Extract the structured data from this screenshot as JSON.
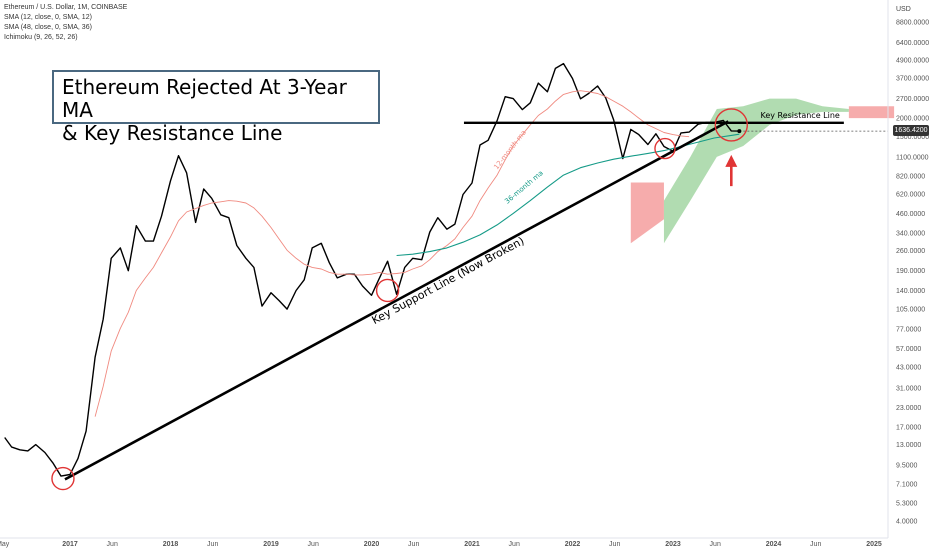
{
  "legend": {
    "symbol": "Ethereum / U.S. Dollar, 1M, COINBASE",
    "sma12": "SMA (12, close, 0, SMA, 12)",
    "sma48": "SMA (48, close, 0, SMA, 36)",
    "ichimoku": "Ichimoku (9, 26, 52, 26)"
  },
  "title": {
    "line1": "Ethereum Rejected At 3-Year MA",
    "line2": "& Key Resistance Line"
  },
  "colors": {
    "price": "#000000",
    "sma12": "#f08a80",
    "sma36": "#169b88",
    "marker": "#e03535",
    "cloud_bull": "#a8d8a8",
    "cloud_bear": "#f5a3a3",
    "annotation_line": "#000000"
  },
  "chart_data": {
    "type": "line",
    "scale": "log",
    "currency": "USD",
    "current_price": "1636.4200",
    "y_ticks": [
      "8800.0000",
      "6400.0000",
      "4900.0000",
      "3700.0000",
      "2700.0000",
      "2000.0000",
      "1500.0000",
      "1100.0000",
      "820.0000",
      "620.0000",
      "460.0000",
      "340.0000",
      "260.0000",
      "190.0000",
      "140.0000",
      "105.0000",
      "77.0000",
      "57.0000",
      "43.0000",
      "31.0000",
      "23.0000",
      "17.0000",
      "13.0000",
      "9.5000",
      "7.1000",
      "5.3000",
      "4.0000"
    ],
    "x_ticks": [
      {
        "label": "May",
        "t": 2016.33
      },
      {
        "label": "2017",
        "t": 2017.0
      },
      {
        "label": "Jun",
        "t": 2017.42
      },
      {
        "label": "2018",
        "t": 2018.0
      },
      {
        "label": "Jun",
        "t": 2018.42
      },
      {
        "label": "2019",
        "t": 2019.0
      },
      {
        "label": "Jun",
        "t": 2019.42
      },
      {
        "label": "2020",
        "t": 2020.0
      },
      {
        "label": "Jun",
        "t": 2020.42
      },
      {
        "label": "2021",
        "t": 2021.0
      },
      {
        "label": "Jun",
        "t": 2021.42
      },
      {
        "label": "2022",
        "t": 2022.0
      },
      {
        "label": "Jun",
        "t": 2022.42
      },
      {
        "label": "2023",
        "t": 2023.0
      },
      {
        "label": "Jun",
        "t": 2023.42
      },
      {
        "label": "2024",
        "t": 2024.0
      },
      {
        "label": "Jun",
        "t": 2024.42
      },
      {
        "label": "2025",
        "t": 2025.0
      }
    ],
    "series": [
      {
        "name": "ETH/USD monthly close",
        "points": [
          [
            2016.35,
            14.5
          ],
          [
            2016.42,
            12.5
          ],
          [
            2016.5,
            12.0
          ],
          [
            2016.58,
            11.8
          ],
          [
            2016.66,
            13.0
          ],
          [
            2016.75,
            11.5
          ],
          [
            2016.83,
            9.8
          ],
          [
            2016.91,
            8.0
          ],
          [
            2017.0,
            8.2
          ],
          [
            2017.08,
            10.5
          ],
          [
            2017.16,
            16
          ],
          [
            2017.25,
            50
          ],
          [
            2017.33,
            90
          ],
          [
            2017.41,
            230
          ],
          [
            2017.5,
            270
          ],
          [
            2017.58,
            190
          ],
          [
            2017.66,
            380
          ],
          [
            2017.75,
            300
          ],
          [
            2017.83,
            300
          ],
          [
            2017.91,
            440
          ],
          [
            2018.0,
            760
          ],
          [
            2018.08,
            1120
          ],
          [
            2018.16,
            860
          ],
          [
            2018.25,
            400
          ],
          [
            2018.33,
            670
          ],
          [
            2018.41,
            580
          ],
          [
            2018.5,
            450
          ],
          [
            2018.58,
            430
          ],
          [
            2018.66,
            280
          ],
          [
            2018.75,
            230
          ],
          [
            2018.83,
            200
          ],
          [
            2018.91,
            110
          ],
          [
            2019.0,
            135
          ],
          [
            2019.08,
            120
          ],
          [
            2019.16,
            105
          ],
          [
            2019.25,
            140
          ],
          [
            2019.33,
            165
          ],
          [
            2019.41,
            270
          ],
          [
            2019.5,
            290
          ],
          [
            2019.58,
            215
          ],
          [
            2019.66,
            170
          ],
          [
            2019.75,
            180
          ],
          [
            2019.83,
            180
          ],
          [
            2019.91,
            150
          ],
          [
            2020.0,
            130
          ],
          [
            2020.08,
            170
          ],
          [
            2020.16,
            220
          ],
          [
            2020.25,
            132
          ],
          [
            2020.33,
            200
          ],
          [
            2020.41,
            230
          ],
          [
            2020.5,
            225
          ],
          [
            2020.58,
            345
          ],
          [
            2020.66,
            430
          ],
          [
            2020.75,
            360
          ],
          [
            2020.83,
            390
          ],
          [
            2020.91,
            615
          ],
          [
            2021.0,
            735
          ],
          [
            2021.08,
            1320
          ],
          [
            2021.16,
            1420
          ],
          [
            2021.25,
            1920
          ],
          [
            2021.33,
            2780
          ],
          [
            2021.41,
            2700
          ],
          [
            2021.5,
            2280
          ],
          [
            2021.58,
            2530
          ],
          [
            2021.66,
            3430
          ],
          [
            2021.75,
            3000
          ],
          [
            2021.83,
            4300
          ],
          [
            2021.91,
            4630
          ],
          [
            2022.0,
            3680
          ],
          [
            2022.08,
            2690
          ],
          [
            2022.16,
            2920
          ],
          [
            2022.25,
            3280
          ],
          [
            2022.33,
            2730
          ],
          [
            2022.41,
            1940
          ],
          [
            2022.5,
            1070
          ],
          [
            2022.58,
            1680
          ],
          [
            2022.66,
            1550
          ],
          [
            2022.75,
            1330
          ],
          [
            2022.83,
            1570
          ],
          [
            2022.91,
            1290
          ],
          [
            2023.0,
            1200
          ],
          [
            2023.08,
            1590
          ],
          [
            2023.16,
            1610
          ],
          [
            2023.25,
            1820
          ],
          [
            2023.33,
            1870
          ],
          [
            2023.41,
            1870
          ],
          [
            2023.5,
            1930
          ],
          [
            2023.58,
            1640
          ],
          [
            2023.66,
            1636
          ]
        ]
      },
      {
        "name": "12-month ma",
        "points": [
          [
            2017.25,
            20
          ],
          [
            2017.33,
            32
          ],
          [
            2017.41,
            55
          ],
          [
            2017.5,
            78
          ],
          [
            2017.58,
            100
          ],
          [
            2017.66,
            140
          ],
          [
            2017.75,
            170
          ],
          [
            2017.83,
            200
          ],
          [
            2017.91,
            250
          ],
          [
            2018.0,
            320
          ],
          [
            2018.08,
            410
          ],
          [
            2018.16,
            470
          ],
          [
            2018.25,
            495
          ],
          [
            2018.33,
            520
          ],
          [
            2018.41,
            540
          ],
          [
            2018.5,
            550
          ],
          [
            2018.58,
            560
          ],
          [
            2018.66,
            555
          ],
          [
            2018.75,
            540
          ],
          [
            2018.83,
            500
          ],
          [
            2018.91,
            440
          ],
          [
            2019.0,
            370
          ],
          [
            2019.08,
            310
          ],
          [
            2019.16,
            260
          ],
          [
            2019.25,
            230
          ],
          [
            2019.33,
            210
          ],
          [
            2019.41,
            200
          ],
          [
            2019.5,
            195
          ],
          [
            2019.58,
            185
          ],
          [
            2019.66,
            180
          ],
          [
            2019.75,
            180
          ],
          [
            2019.83,
            178
          ],
          [
            2019.91,
            178
          ],
          [
            2020.0,
            180
          ],
          [
            2020.08,
            185
          ],
          [
            2020.16,
            180
          ],
          [
            2020.25,
            182
          ],
          [
            2020.33,
            185
          ],
          [
            2020.41,
            195
          ],
          [
            2020.5,
            205
          ],
          [
            2020.58,
            225
          ],
          [
            2020.66,
            255
          ],
          [
            2020.75,
            280
          ],
          [
            2020.83,
            310
          ],
          [
            2020.91,
            370
          ],
          [
            2021.0,
            440
          ],
          [
            2021.08,
            560
          ],
          [
            2021.16,
            680
          ],
          [
            2021.25,
            830
          ],
          [
            2021.33,
            1050
          ],
          [
            2021.41,
            1300
          ],
          [
            2021.5,
            1550
          ],
          [
            2021.58,
            1800
          ],
          [
            2021.66,
            2080
          ],
          [
            2021.75,
            2300
          ],
          [
            2021.83,
            2600
          ],
          [
            2021.91,
            2880
          ],
          [
            2022.0,
            3000
          ],
          [
            2022.08,
            3050
          ],
          [
            2022.16,
            3000
          ],
          [
            2022.25,
            2920
          ],
          [
            2022.33,
            2780
          ],
          [
            2022.41,
            2600
          ],
          [
            2022.5,
            2400
          ],
          [
            2022.58,
            2200
          ],
          [
            2022.66,
            2000
          ],
          [
            2022.75,
            1800
          ],
          [
            2022.83,
            1700
          ],
          [
            2022.91,
            1600
          ],
          [
            2023.0,
            1550
          ],
          [
            2023.08,
            1520
          ],
          [
            2023.16,
            1500
          ]
        ]
      },
      {
        "name": "36-month ma",
        "points": [
          [
            2020.25,
            240
          ],
          [
            2020.41,
            245
          ],
          [
            2020.58,
            255
          ],
          [
            2020.75,
            270
          ],
          [
            2020.91,
            295
          ],
          [
            2021.08,
            330
          ],
          [
            2021.25,
            385
          ],
          [
            2021.41,
            460
          ],
          [
            2021.58,
            560
          ],
          [
            2021.75,
            690
          ],
          [
            2021.91,
            830
          ],
          [
            2022.08,
            930
          ],
          [
            2022.25,
            1000
          ],
          [
            2022.41,
            1060
          ],
          [
            2022.58,
            1110
          ],
          [
            2022.75,
            1160
          ],
          [
            2022.91,
            1210
          ],
          [
            2023.08,
            1290
          ],
          [
            2023.25,
            1380
          ],
          [
            2023.41,
            1470
          ],
          [
            2023.58,
            1530
          ],
          [
            2023.66,
            1560
          ]
        ]
      }
    ],
    "ichimoku_cloud": {
      "bearish_segment": {
        "t_start": 2022.58,
        "t_end": 2022.91,
        "upper": 740,
        "lower_start": 290,
        "lower_end": 420
      },
      "bullish_segment": {
        "t_start": 2022.91,
        "t_end": 2024.75,
        "upper_levels": [
          560,
          1100,
          2300,
          2400,
          2700,
          2700,
          2400,
          2300
        ],
        "lower_levels": [
          290,
          560,
          1100,
          1300,
          1800,
          2100,
          2200,
          2200
        ]
      },
      "future_bearish": {
        "t_start": 2024.75,
        "t_end": 2025.2,
        "upper": 2400,
        "lower": 2000
      }
    },
    "annotations": {
      "support_line": {
        "label": "Key Support Line (Now Broken)",
        "from": [
          2016.95,
          7.6
        ],
        "to": [
          2023.55,
          1900
        ]
      },
      "resistance_line": {
        "label": "Key Resistance Line",
        "level": 1860,
        "t_start": 2020.92,
        "t_end": 2024.7
      },
      "label_12ma": "12-month ma",
      "label_36ma": "36-month ma",
      "circles": [
        {
          "t": 2016.93,
          "v": 7.7
        },
        {
          "t": 2020.16,
          "v": 140
        },
        {
          "t": 2022.92,
          "v": 1250
        },
        {
          "t": 2023.58,
          "v": 1800
        }
      ],
      "arrow": {
        "t": 2023.58,
        "v_from": 700,
        "v_to": 1100
      }
    }
  }
}
